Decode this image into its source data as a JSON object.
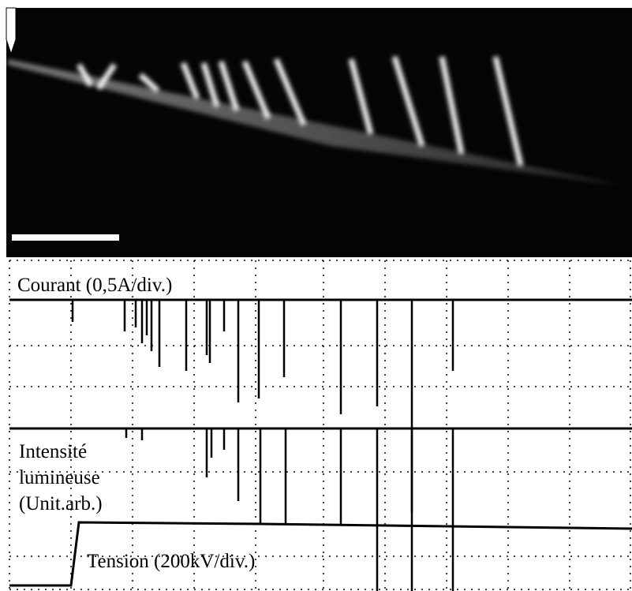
{
  "labels": {
    "courant": "Courant (0,5A/div.)",
    "intensite": [
      "Intensité",
      "lumineuse",
      "(Unit.arb.)"
    ],
    "tension": "Tension (200kV/div.)"
  }
}
